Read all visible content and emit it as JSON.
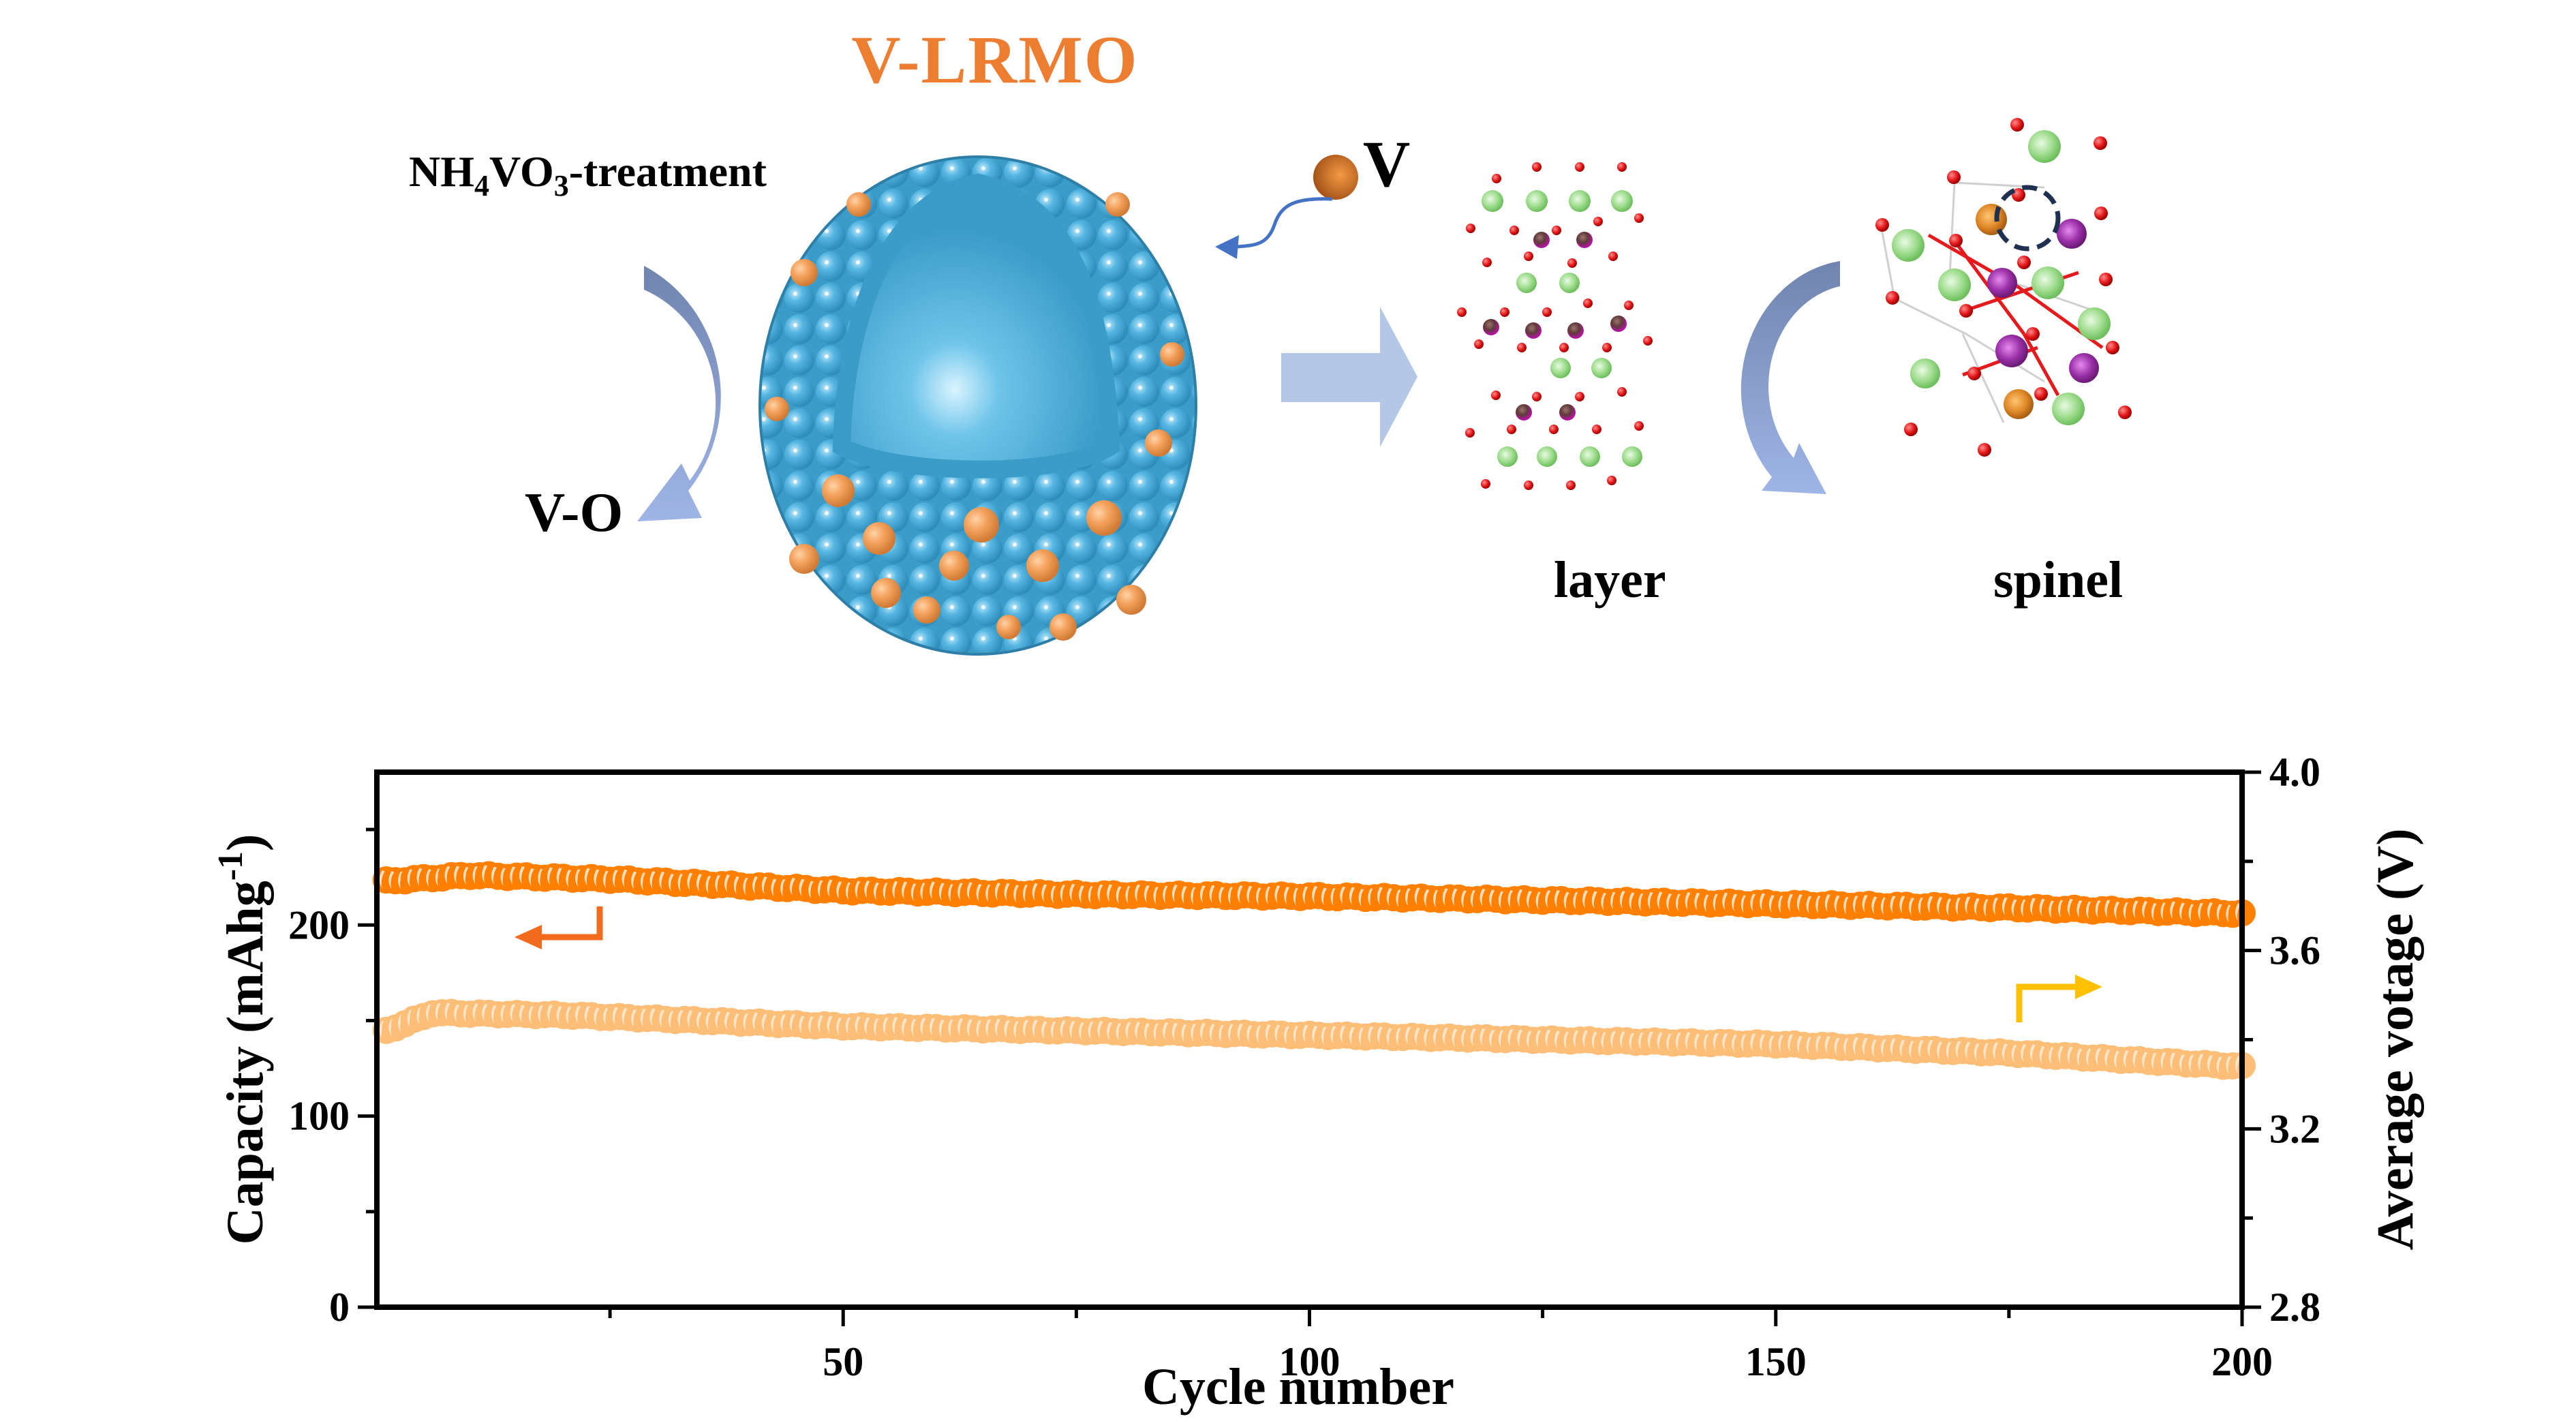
{
  "figure": {
    "title": "V-LRMO",
    "treatment_label": {
      "prefix": "NH",
      "sub1": "4",
      "mid": "VO",
      "sub2": "3",
      "suffix": "-treatment"
    },
    "vo_label": "V-O",
    "v_atom_label": "V",
    "layer_label": "layer",
    "spinel_label": "spinel",
    "colors": {
      "title": "#ED7D31",
      "sphere_blue": "#4FB3E0",
      "sphere_orange": "#F4A35F",
      "arrow_blue": "#8EA6D9",
      "arrow_dark": "#6F84AE",
      "o_atom": "#E41A1C",
      "li_atom": "#8FD77F",
      "mn_atom": "#9B30A8",
      "v_atom": "#E0892A"
    }
  },
  "chart_data": {
    "type": "scatter",
    "title": "",
    "xlabel": "Cycle number",
    "ylabel_left": "Capacity (mAhg-1)",
    "ylabel_left_parts": {
      "main": "Capacity (mAhg",
      "sup": "-1",
      "close": ")"
    },
    "ylabel_right": "Average votage (V)",
    "xlim": [
      1,
      200
    ],
    "ylim_left": [
      0,
      280
    ],
    "ylim_right": [
      2.8,
      4.0
    ],
    "x_ticks": [
      50,
      100,
      150,
      200
    ],
    "x_tick_labels": [
      "50",
      "100",
      "150",
      "200"
    ],
    "y_left_ticks": [
      0,
      100,
      200
    ],
    "y_left_tick_labels": [
      "0",
      "100",
      "200"
    ],
    "y_right_ticks": [
      2.8,
      3.2,
      3.6,
      4.0
    ],
    "y_right_tick_labels": [
      "2.8",
      "3.2",
      "3.6",
      "4.0"
    ],
    "grid": false,
    "series": [
      {
        "name": "Capacity",
        "axis": "left",
        "color": "#FF7F00",
        "arrow": "left",
        "arrow_color": "#F26B1D",
        "keypoints": [
          [
            1,
            223
          ],
          [
            10,
            226
          ],
          [
            25,
            224
          ],
          [
            50,
            218
          ],
          [
            75,
            216
          ],
          [
            100,
            215
          ],
          [
            125,
            213
          ],
          [
            150,
            211
          ],
          [
            175,
            209
          ],
          [
            200,
            206
          ]
        ]
      },
      {
        "name": "Average voltage",
        "axis": "right",
        "color": "#FDBE78",
        "arrow": "right",
        "arrow_color": "#FFC000",
        "keypoints": [
          [
            1,
            3.42
          ],
          [
            6,
            3.46
          ],
          [
            20,
            3.455
          ],
          [
            50,
            3.43
          ],
          [
            75,
            3.42
          ],
          [
            100,
            3.41
          ],
          [
            125,
            3.4
          ],
          [
            150,
            3.39
          ],
          [
            175,
            3.37
          ],
          [
            200,
            3.34
          ]
        ]
      }
    ]
  }
}
